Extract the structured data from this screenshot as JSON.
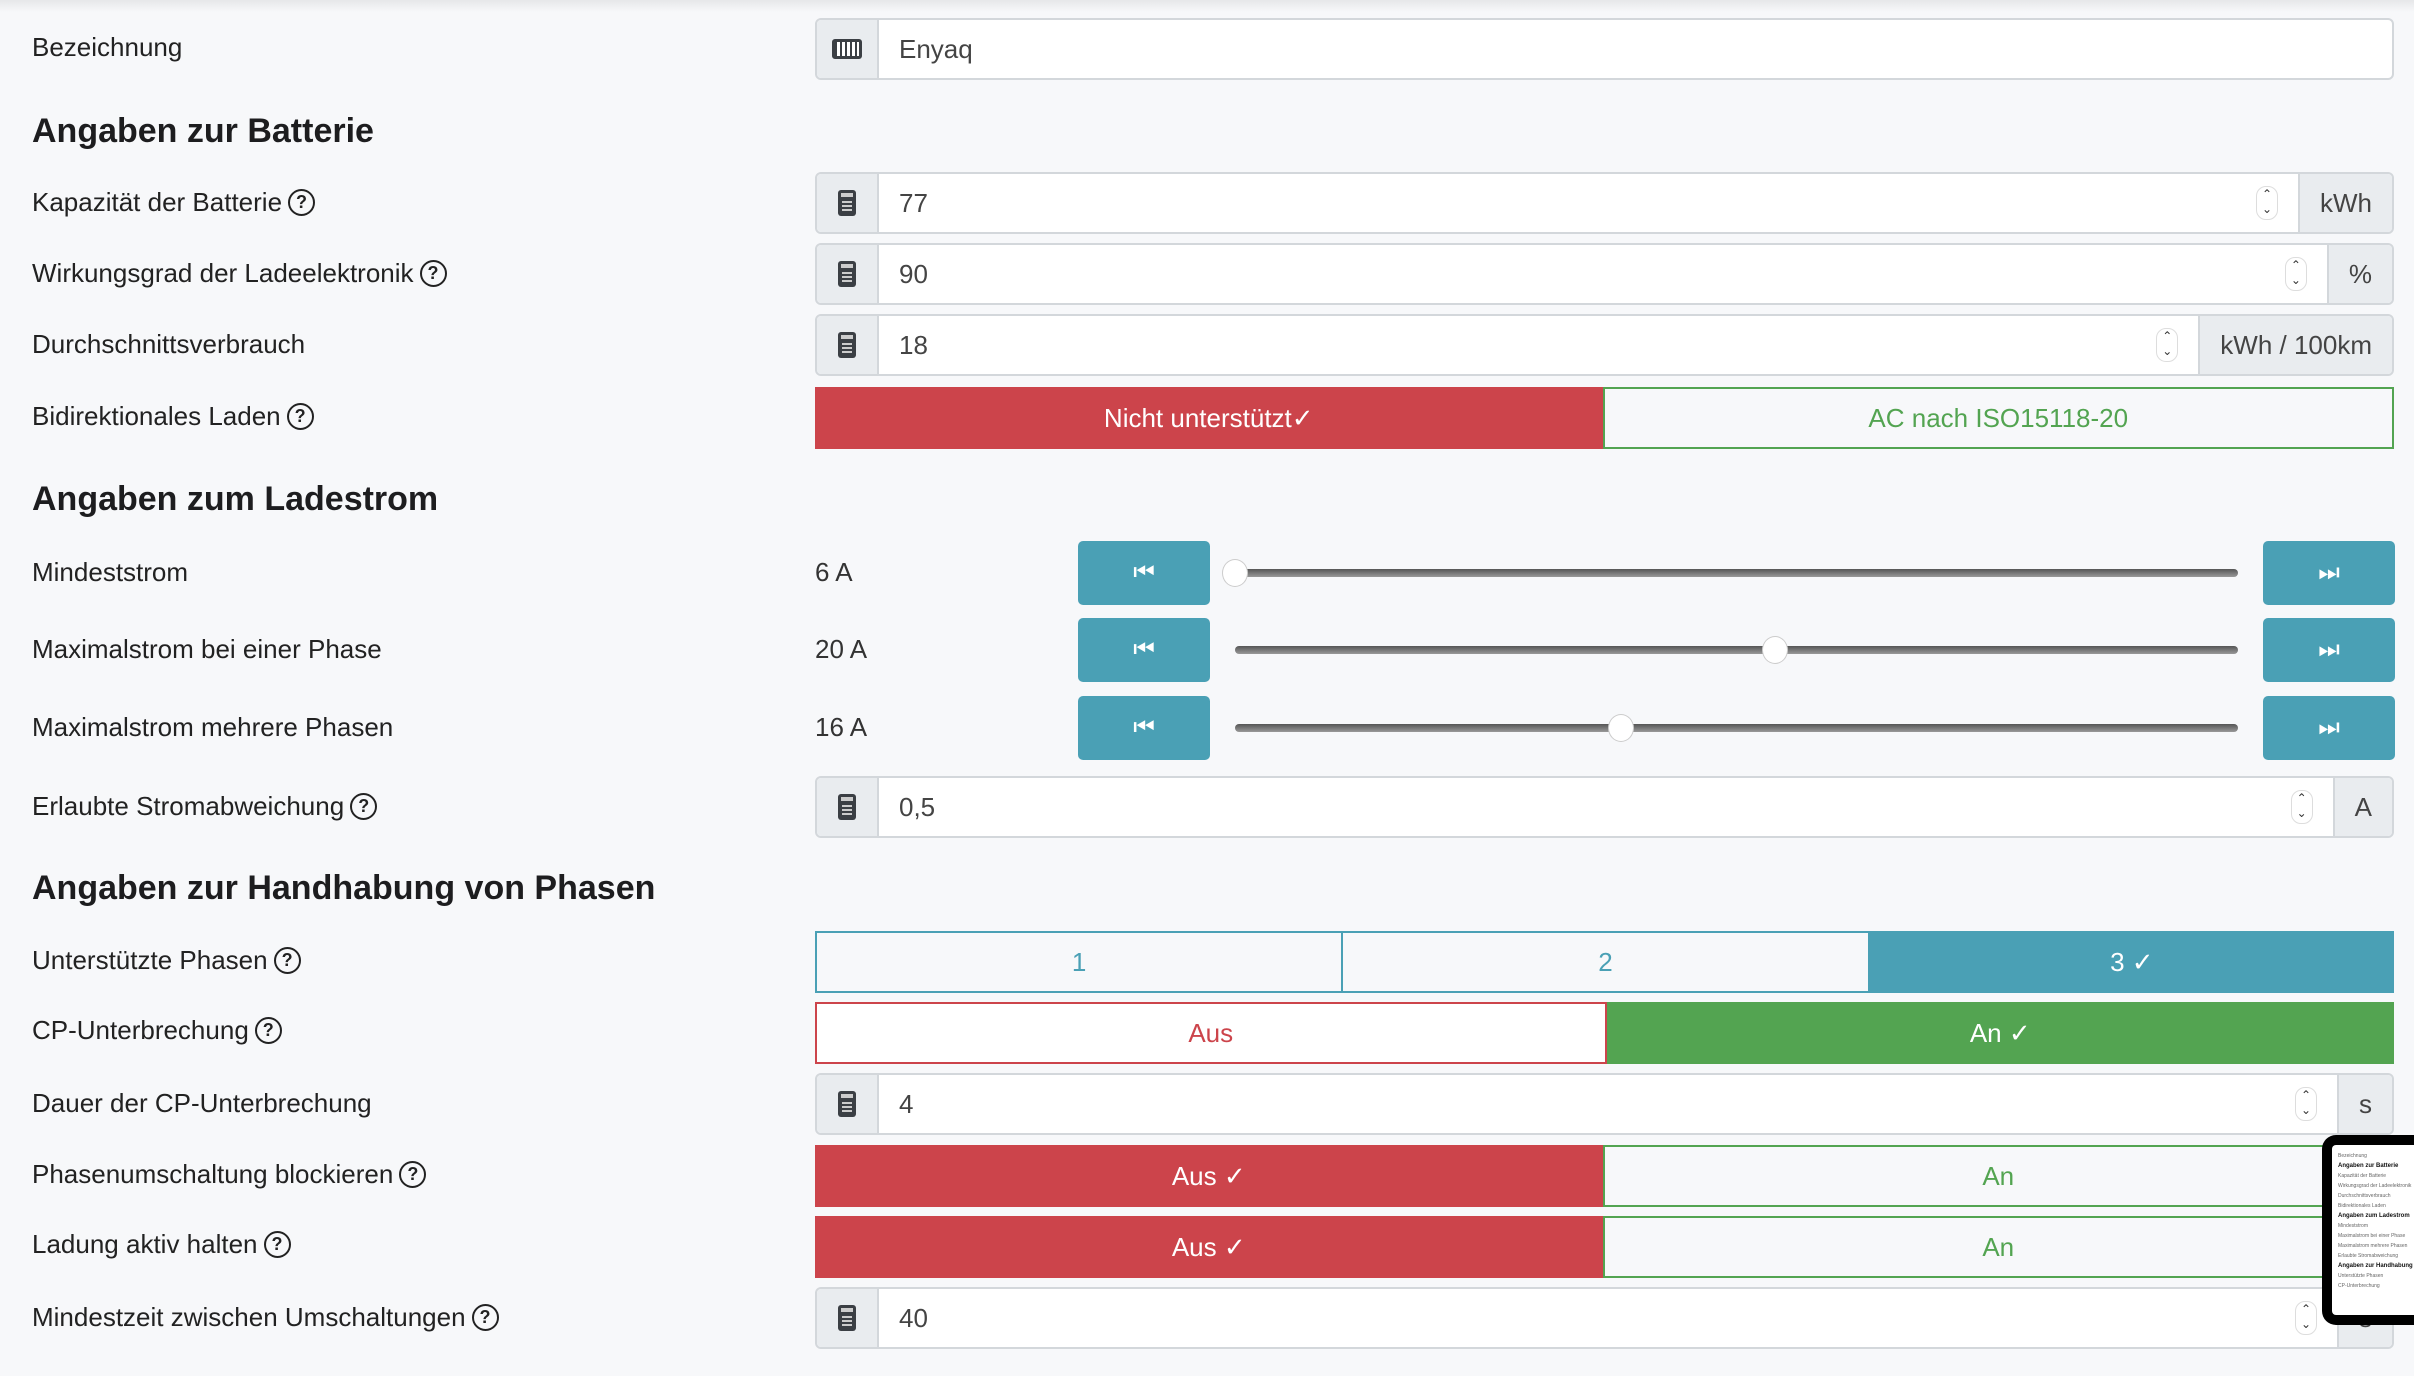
{
  "fields": {
    "name": {
      "label": "Bezeichnung",
      "value": "Enyaq"
    },
    "battery_heading": "Angaben zur Batterie",
    "capacity": {
      "label": "Kapazität der Batterie",
      "value": "77",
      "unit": "kWh"
    },
    "efficiency": {
      "label": "Wirkungsgrad der Ladeelektronik",
      "value": "90",
      "unit": "%"
    },
    "consumption": {
      "label": "Durchschnittsverbrauch",
      "value": "18",
      "unit": "kWh / 100km"
    },
    "bidi": {
      "label": "Bidirektionales Laden",
      "options": [
        "Nicht unterstützt",
        "AC nach ISO15118-20"
      ],
      "selected": "Nicht unterstützt"
    },
    "current_heading": "Angaben zum Ladestrom",
    "min_current": {
      "label": "Mindeststrom",
      "value": "6 A",
      "num": 6
    },
    "max_one": {
      "label": "Maximalstrom bei einer Phase",
      "value": "20 A",
      "num": 20
    },
    "max_multi": {
      "label": "Maximalstrom mehrere Phasen",
      "value": "16 A",
      "num": 16
    },
    "slider_range": [
      6,
      32
    ],
    "deviation": {
      "label": "Erlaubte Stromabweichung",
      "value": "0,5",
      "unit": "A"
    },
    "phase_heading": "Angaben zur Handhabung von Phasen",
    "phases": {
      "label": "Unterstützte Phasen",
      "options": [
        "1",
        "2",
        "3"
      ],
      "selected": "3"
    },
    "cp": {
      "label": "CP-Unterbrechung",
      "options": [
        "Aus",
        "An"
      ],
      "selected": "An"
    },
    "cp_duration": {
      "label": "Dauer der CP-Unterbrechung",
      "value": "4",
      "unit": "s"
    },
    "block_switch": {
      "label": "Phasenumschaltung blockieren",
      "options": [
        "Aus",
        "An"
      ],
      "selected": "Aus"
    },
    "keep_active": {
      "label": "Ladung aktiv halten",
      "options": [
        "Aus",
        "An"
      ],
      "selected": "Aus"
    },
    "min_time": {
      "label": "Mindestzeit zwischen Umschaltungen",
      "value": "40",
      "unit": "s"
    }
  },
  "check": "✓",
  "colors": {
    "red": "#cc444b",
    "green": "#53a451",
    "teal": "#4aa0b5"
  }
}
